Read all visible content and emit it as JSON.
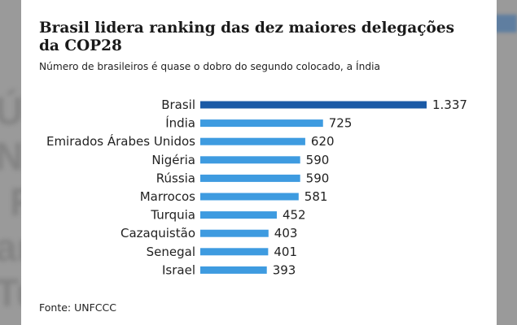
{
  "chart_data": {
    "type": "bar",
    "orientation": "horizontal",
    "title": "Brasil lidera ranking das dez maiores delegações da COP28",
    "subtitle": "Número de brasileiros é quase o dobro do segundo colocado, a Índia",
    "source": "Fonte: UNFCCC",
    "categories": [
      "Brasil",
      "Índia",
      "Emirados Árabes Unidos",
      "Nigéria",
      "Rússia",
      "Marrocos",
      "Turquia",
      "Cazaquistão",
      "Senegal",
      "Israel"
    ],
    "values": [
      1337,
      725,
      620,
      590,
      590,
      581,
      452,
      403,
      401,
      393
    ],
    "value_labels": [
      "1.337",
      "725",
      "620",
      "590",
      "590",
      "581",
      "452",
      "403",
      "401",
      "393"
    ],
    "xlim": [
      0,
      1337
    ],
    "grid": false,
    "colors": {
      "highlight": "#1b5aa6",
      "bar": "#3e9be0"
    }
  },
  "background": {
    "blurred_text": [
      "Ú",
      "N",
      "R",
      "ar",
      "Tu"
    ]
  }
}
